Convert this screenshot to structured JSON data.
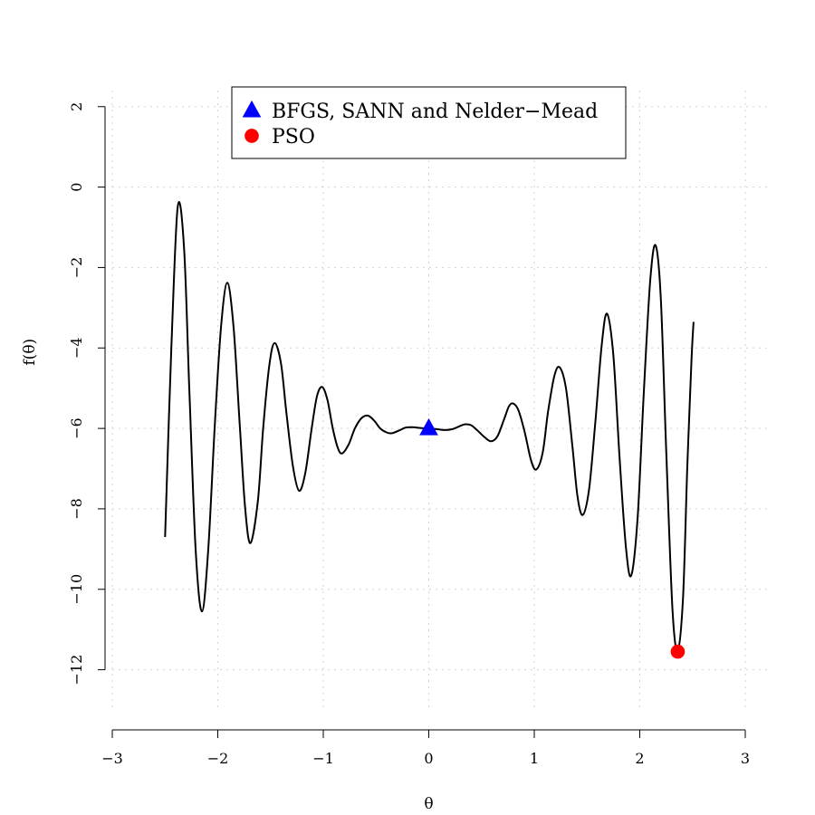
{
  "chart_data": {
    "type": "line",
    "xlabel": "θ",
    "ylabel": "f(θ)",
    "xlim": [
      -3,
      3
    ],
    "ylim": [
      -13,
      2.4
    ],
    "xticks": [
      -3,
      -2,
      -1,
      0,
      1,
      2,
      3
    ],
    "yticks": [
      -12,
      -10,
      -8,
      -6,
      -4,
      -2,
      0,
      2
    ],
    "grid": true,
    "legend_position": "top",
    "curve": {
      "color": "#000000",
      "points": [
        [
          -2.5,
          -8.7
        ],
        [
          -2.44,
          -4.0
        ],
        [
          -2.38,
          -0.5
        ],
        [
          -2.32,
          -1.5
        ],
        [
          -2.27,
          -5.0
        ],
        [
          -2.21,
          -9.0
        ],
        [
          -2.15,
          -10.55
        ],
        [
          -2.09,
          -9.0
        ],
        [
          -2.03,
          -6.0
        ],
        [
          -1.97,
          -3.5
        ],
        [
          -1.91,
          -2.38
        ],
        [
          -1.85,
          -3.5
        ],
        [
          -1.79,
          -6.0
        ],
        [
          -1.74,
          -8.0
        ],
        [
          -1.69,
          -8.85
        ],
        [
          -1.62,
          -7.8
        ],
        [
          -1.57,
          -6.0
        ],
        [
          -1.51,
          -4.4
        ],
        [
          -1.46,
          -3.88
        ],
        [
          -1.4,
          -4.4
        ],
        [
          -1.35,
          -5.6
        ],
        [
          -1.29,
          -6.9
        ],
        [
          -1.23,
          -7.55
        ],
        [
          -1.17,
          -7.1
        ],
        [
          -1.11,
          -6.0
        ],
        [
          -1.06,
          -5.2
        ],
        [
          -1.01,
          -4.97
        ],
        [
          -0.96,
          -5.3
        ],
        [
          -0.91,
          -6.0
        ],
        [
          -0.86,
          -6.5
        ],
        [
          -0.82,
          -6.62
        ],
        [
          -0.76,
          -6.4
        ],
        [
          -0.7,
          -6.0
        ],
        [
          -0.64,
          -5.75
        ],
        [
          -0.58,
          -5.68
        ],
        [
          -0.52,
          -5.8
        ],
        [
          -0.46,
          -6.0
        ],
        [
          -0.4,
          -6.1
        ],
        [
          -0.35,
          -6.12
        ],
        [
          -0.28,
          -6.05
        ],
        [
          -0.22,
          -5.98
        ],
        [
          -0.15,
          -5.97
        ],
        [
          -0.08,
          -5.99
        ],
        [
          0.0,
          -6.0
        ],
        [
          0.08,
          -6.02
        ],
        [
          0.15,
          -6.04
        ],
        [
          0.22,
          -6.02
        ],
        [
          0.28,
          -5.96
        ],
        [
          0.34,
          -5.9
        ],
        [
          0.4,
          -5.92
        ],
        [
          0.46,
          -6.05
        ],
        [
          0.53,
          -6.22
        ],
        [
          0.59,
          -6.32
        ],
        [
          0.65,
          -6.2
        ],
        [
          0.71,
          -5.8
        ],
        [
          0.76,
          -5.45
        ],
        [
          0.8,
          -5.38
        ],
        [
          0.85,
          -5.55
        ],
        [
          0.91,
          -6.1
        ],
        [
          0.97,
          -6.8
        ],
        [
          1.02,
          -7.02
        ],
        [
          1.08,
          -6.6
        ],
        [
          1.13,
          -5.6
        ],
        [
          1.19,
          -4.7
        ],
        [
          1.24,
          -4.48
        ],
        [
          1.3,
          -5.0
        ],
        [
          1.36,
          -6.4
        ],
        [
          1.41,
          -7.7
        ],
        [
          1.46,
          -8.15
        ],
        [
          1.52,
          -7.5
        ],
        [
          1.58,
          -5.8
        ],
        [
          1.64,
          -3.9
        ],
        [
          1.69,
          -3.15
        ],
        [
          1.75,
          -4.2
        ],
        [
          1.81,
          -6.8
        ],
        [
          1.87,
          -9.0
        ],
        [
          1.92,
          -9.65
        ],
        [
          1.98,
          -8.2
        ],
        [
          2.04,
          -5.0
        ],
        [
          2.1,
          -2.3
        ],
        [
          2.15,
          -1.45
        ],
        [
          2.2,
          -2.8
        ],
        [
          2.25,
          -6.5
        ],
        [
          2.31,
          -10.5
        ],
        [
          2.36,
          -11.52
        ],
        [
          2.41,
          -10.2
        ],
        [
          2.45,
          -7.0
        ],
        [
          2.49,
          -4.3
        ],
        [
          2.51,
          -3.35
        ]
      ]
    },
    "series": [
      {
        "name": "BFGS, SANN and Nelder−Mead",
        "marker": "triangle",
        "color": "#0000ff",
        "x": 0.0,
        "y": -6.0
      },
      {
        "name": "PSO",
        "marker": "circle",
        "color": "#ff0000",
        "x": 2.36,
        "y": -11.55
      }
    ]
  }
}
